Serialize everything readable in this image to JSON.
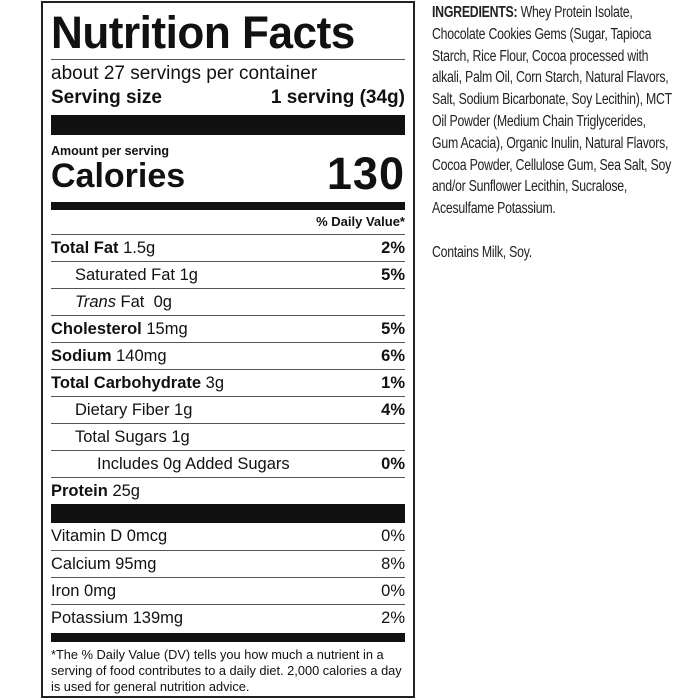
{
  "label": {
    "title": "Nutrition Facts",
    "servings_per_container": "about 27 servings per container",
    "serving_size_label": "Serving size",
    "serving_size_value": "1 serving (34g)",
    "amount_per_serving": "Amount per serving",
    "calories_label": "Calories",
    "calories_value": "130",
    "daily_value_header": "% Daily Value*",
    "nutrients": [
      {
        "name": "Total Fat",
        "amount": "1.5g",
        "dv": "2%"
      },
      {
        "name": "Saturated Fat",
        "amount": "1g",
        "dv": "5%"
      },
      {
        "name": "Trans",
        "name_suffix": "Fat",
        "amount": "0g",
        "dv": ""
      },
      {
        "name": "Cholesterol",
        "amount": "15mg",
        "dv": "5%"
      },
      {
        "name": "Sodium",
        "amount": "140mg",
        "dv": "6%"
      },
      {
        "name": "Total Carbohydrate",
        "amount": "3g",
        "dv": "1%"
      },
      {
        "name": "Dietary Fiber",
        "amount": "1g",
        "dv": "4%"
      },
      {
        "name": "Total Sugars",
        "amount": "1g",
        "dv": ""
      },
      {
        "name": "Includes 0g Added Sugars",
        "amount": "",
        "dv": "0%"
      },
      {
        "name": "Protein",
        "amount": "25g",
        "dv": ""
      }
    ],
    "vitamins": [
      {
        "name": "Vitamin D 0mcg",
        "dv": "0%"
      },
      {
        "name": "Calcium 95mg",
        "dv": "8%"
      },
      {
        "name": "Iron 0mg",
        "dv": "0%"
      },
      {
        "name": "Potassium 139mg",
        "dv": "2%"
      }
    ],
    "footnote": "*The % Daily Value (DV) tells you how much a nutrient in a serving of food contributes to a daily diet. 2,000 calories a day is used for general nutrition advice."
  },
  "ingredients": {
    "heading": "INGREDIENTS:",
    "text": "Whey Protein Isolate, Chocolate Cookies Gems (Sugar, Tapioca Starch, Rice Flour, Cocoa processed with alkali, Palm Oil, Corn Starch, Natural Flavors, Salt, Sodium Bicarbonate, Soy Lecithin), MCT Oil Powder (Medium Chain Triglycerides, Gum Acacia), Organic Inulin, Natural Flavors, Cocoa Powder, Cellulose Gum, Sea Salt, Soy and/or Sunflower Lecithin, Sucralose, Acesulfame Potassium.",
    "allergens": "Contains Milk, Soy."
  }
}
